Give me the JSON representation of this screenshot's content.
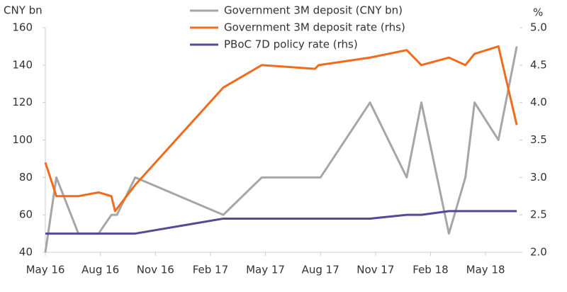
{
  "chart_data": {
    "type": "line",
    "y_label": "CNY bn",
    "y2_label": "%",
    "xlim": [
      0,
      25.85
    ],
    "xticks": [
      {
        "value": 0,
        "label": "May 16"
      },
      {
        "value": 3,
        "label": "Aug 16"
      },
      {
        "value": 6,
        "label": "Nov 16"
      },
      {
        "value": 9,
        "label": "Feb 17"
      },
      {
        "value": 12,
        "label": "May 17"
      },
      {
        "value": 15,
        "label": "Aug 17"
      },
      {
        "value": 18,
        "label": "Nov 17"
      },
      {
        "value": 21,
        "label": "Feb 18"
      },
      {
        "value": 24,
        "label": "May 18"
      }
    ],
    "ylim": [
      40,
      160
    ],
    "yticks": [
      40,
      60,
      80,
      100,
      120,
      140,
      160
    ],
    "y2lim": [
      2,
      5
    ],
    "y2ticks": [
      {
        "value": 2,
        "label": "2.0"
      },
      2.5,
      {
        "value": 3,
        "label": "3.0"
      },
      3.5,
      {
        "value": 4,
        "label": "4.0"
      },
      4.5,
      {
        "value": 5,
        "label": "5.0"
      }
    ],
    "series": [
      {
        "name": "Government 3M deposit (CNY bn)",
        "color": "#a6a6a6",
        "x": [
          0,
          0.6,
          1.8,
          2.9,
          3.6,
          3.9,
          4.9,
          9.7,
          11.8,
          15.0,
          17.7,
          19.7,
          20.5,
          22.0,
          22.9,
          23.4,
          24.7,
          25.7
        ],
        "values": [
          40,
          80,
          50,
          50,
          60,
          60,
          80,
          60,
          80,
          80,
          120,
          80,
          120,
          50,
          80,
          120,
          100,
          150
        ]
      },
      {
        "name": "Government 3M deposit rate (rhs)",
        "color": "#f26b1d",
        "axis": "y2",
        "x": [
          0,
          0.6,
          1.8,
          2.9,
          3.6,
          3.8,
          4.9,
          9.7,
          11.8,
          14.7,
          14.9,
          17.7,
          19.7,
          20.5,
          22.0,
          22.9,
          23.4,
          24.7,
          25.7
        ],
        "values": [
          3.2,
          2.75,
          2.75,
          2.8,
          2.75,
          2.55,
          2.9,
          4.2,
          4.5,
          4.45,
          4.5,
          4.6,
          4.7,
          4.5,
          4.6,
          4.5,
          4.65,
          4.75,
          3.7
        ]
      },
      {
        "name": "PBoC 7D policy rate (rhs)",
        "color": "#524a96",
        "axis": "y2",
        "x": [
          0,
          4.9,
          9.7,
          17.7,
          19.7,
          20.5,
          22.0,
          25.7
        ],
        "values": [
          2.25,
          2.25,
          2.45,
          2.45,
          2.5,
          2.5,
          2.55,
          2.55
        ]
      }
    ]
  }
}
